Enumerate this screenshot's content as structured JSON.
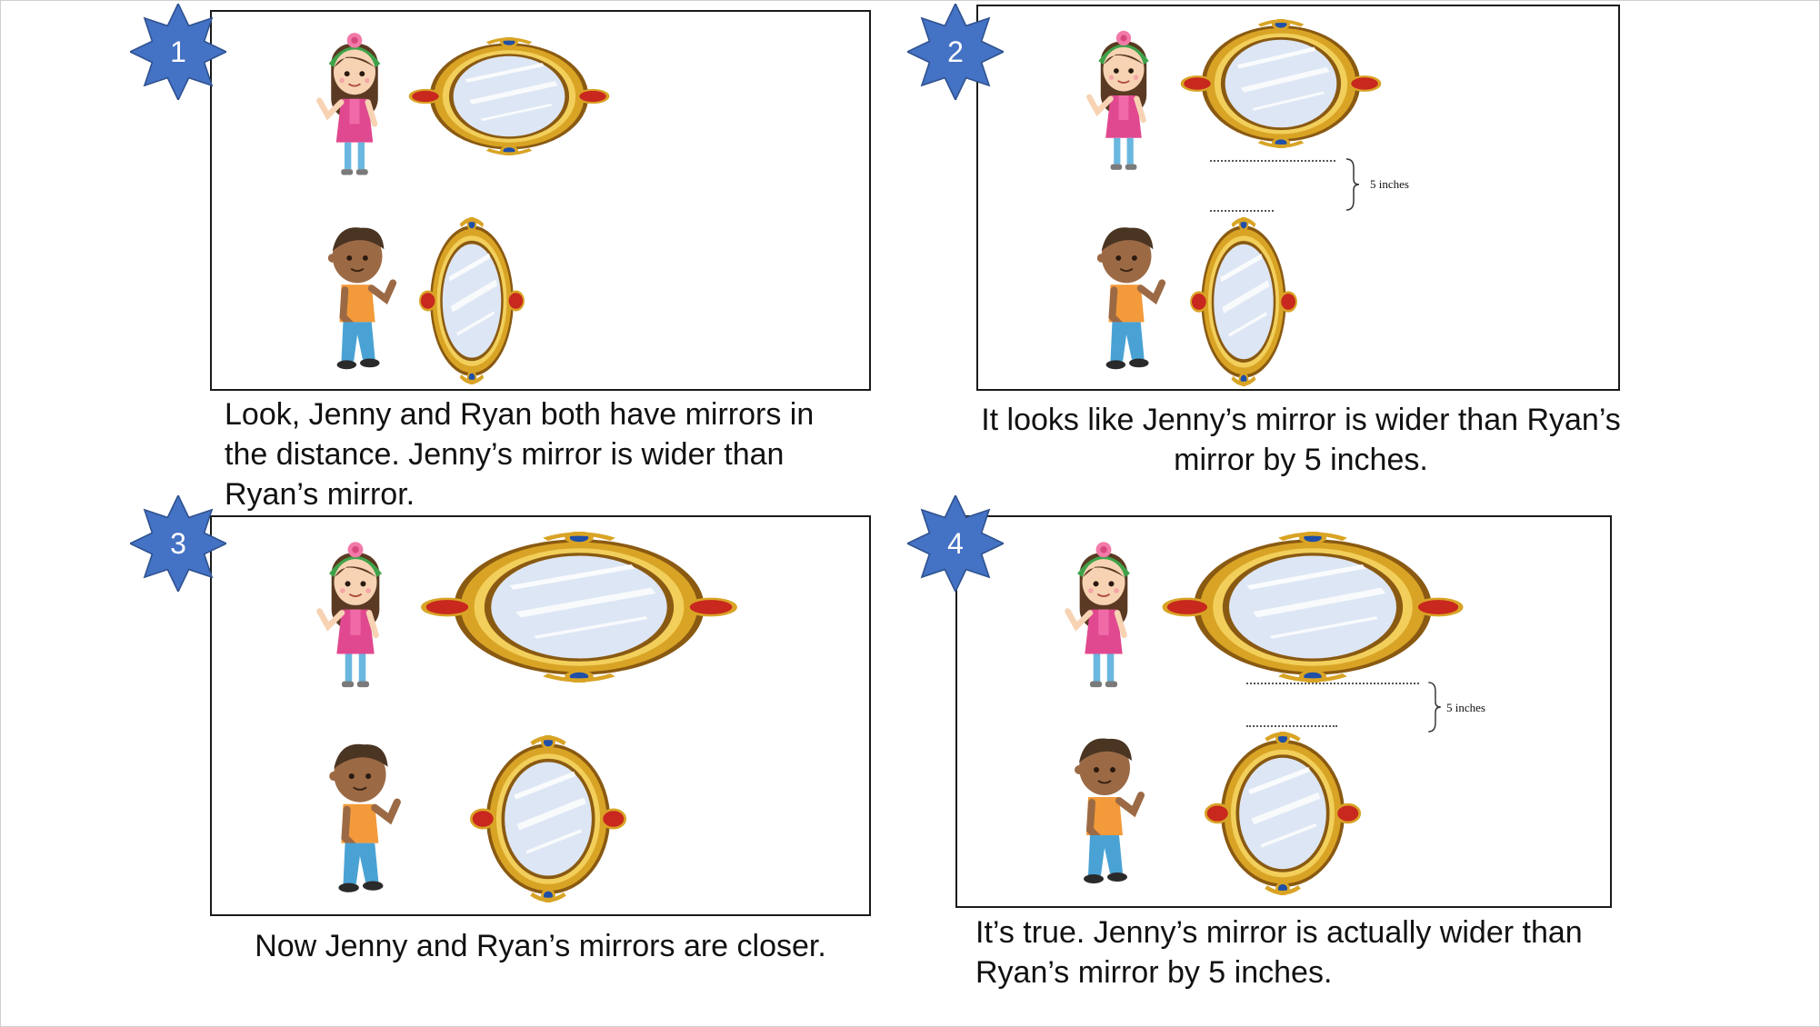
{
  "accent_color": "#4472c4",
  "steps": [
    {
      "number": "1",
      "caption": "Look, Jenny and Ryan both have mirrors in the distance. Jenny’s mirror is wider than Ryan’s mirror."
    },
    {
      "number": "2",
      "caption": "It looks like Jenny’s mirror is wider than Ryan’s mirror by 5 inches.",
      "measure_label": "5 inches"
    },
    {
      "number": "3",
      "caption": "Now Jenny and Ryan’s mirrors are closer."
    },
    {
      "number": "4",
      "caption": "It’s true. Jenny’s mirror is actually wider than Ryan’s mirror by 5 inches.",
      "measure_label": "5 inches"
    }
  ],
  "figures": {
    "girl": "jenny-figure",
    "boy": "ryan-figure",
    "mirror": "ornate-oval-mirror"
  }
}
